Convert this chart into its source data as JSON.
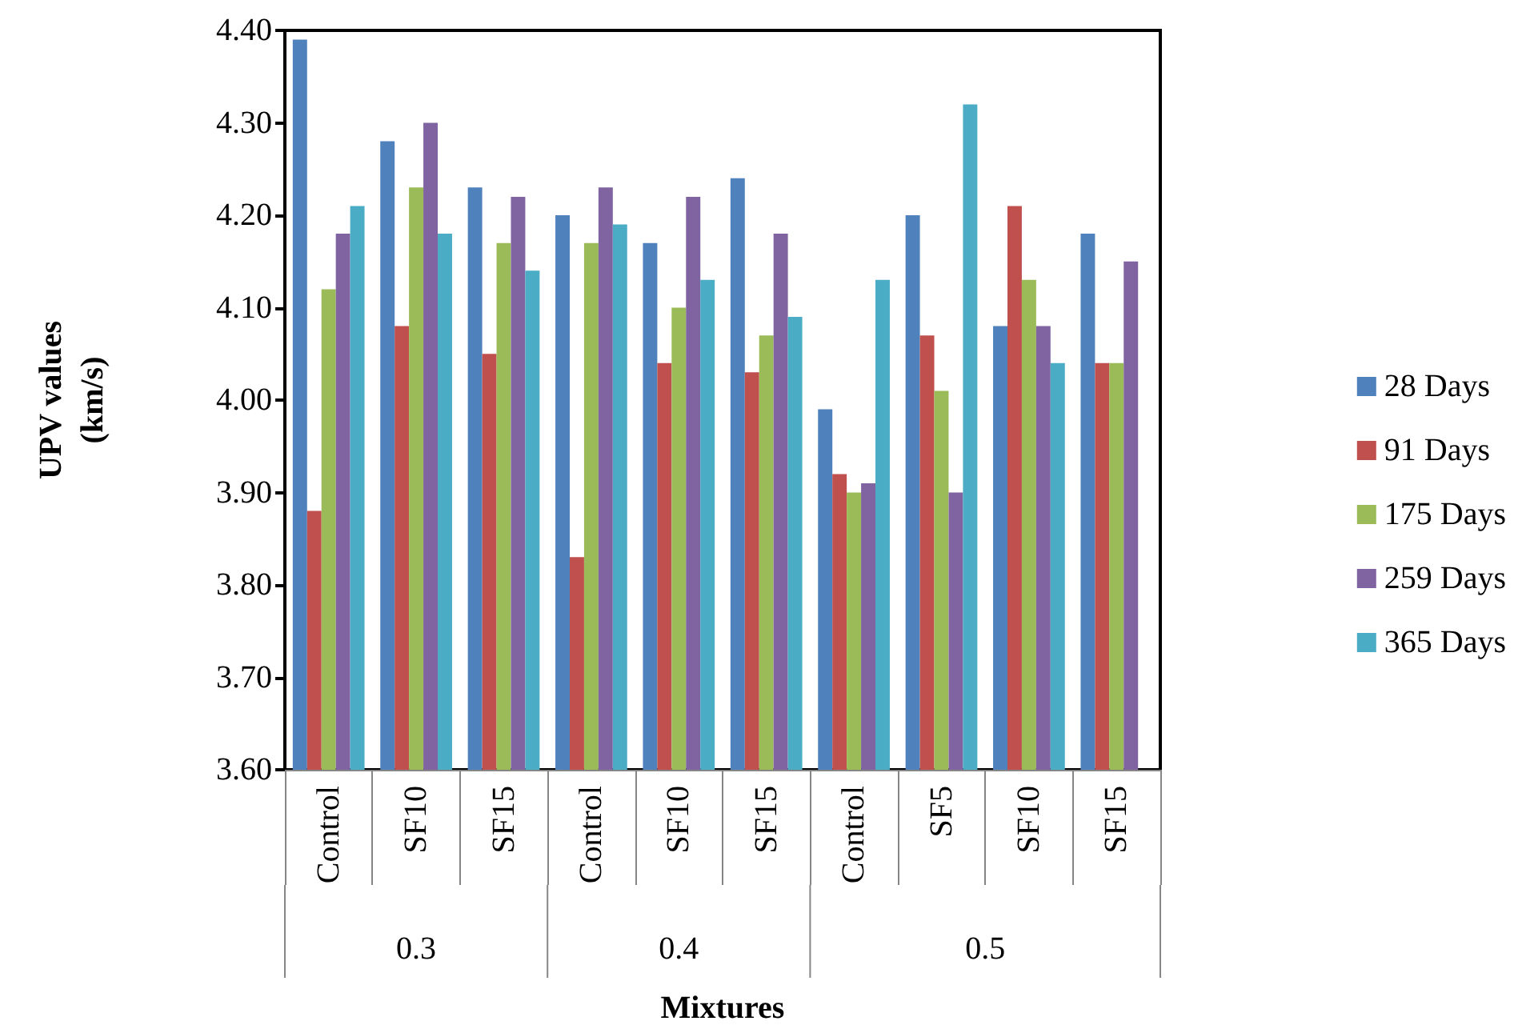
{
  "chart_data": {
    "type": "bar",
    "xlabel": "Mixtures",
    "ylabel": "UPV values\n(km/s)",
    "categories": [
      "Control",
      "SF10",
      "SF15",
      "Control",
      "SF10",
      "SF15",
      "Control",
      "SF5",
      "SF10",
      "SF15"
    ],
    "series": [
      {
        "name": "28 Days",
        "color": "#4f81bd",
        "values": [
          4.39,
          4.28,
          4.23,
          4.2,
          4.17,
          4.24,
          3.99,
          4.2,
          4.08,
          4.18
        ]
      },
      {
        "name": "91 Days",
        "color": "#c0504d",
        "values": [
          3.88,
          4.08,
          4.05,
          3.83,
          4.04,
          4.03,
          3.92,
          4.07,
          4.21,
          4.04
        ]
      },
      {
        "name": "175 Days",
        "color": "#9bbb59",
        "values": [
          4.12,
          4.23,
          4.17,
          4.17,
          4.1,
          4.07,
          3.9,
          4.01,
          4.13,
          4.04
        ]
      },
      {
        "name": "259 Days",
        "color": "#8064a2",
        "values": [
          4.18,
          4.3,
          4.22,
          4.23,
          4.22,
          4.18,
          3.91,
          3.9,
          4.08,
          4.15
        ]
      },
      {
        "name": "365 Days",
        "color": "#4bacc6",
        "values": [
          4.21,
          4.18,
          4.14,
          4.19,
          4.13,
          4.09,
          4.13,
          4.32,
          4.04,
          null
        ]
      }
    ],
    "annotations": [
      "0.3",
      "0.4",
      "0.5"
    ],
    "ylim": [
      3.6,
      4.4
    ],
    "yticks": [
      {
        "value": 3.6,
        "label": "3.60"
      },
      {
        "value": 3.7,
        "label": "3.70"
      },
      {
        "value": 3.8,
        "label": "3.80"
      },
      {
        "value": 3.9,
        "label": "3.90"
      },
      {
        "value": 4.0,
        "label": "4.00"
      },
      {
        "value": 4.1,
        "label": "4.10"
      },
      {
        "value": 4.2,
        "label": "4.20"
      },
      {
        "value": 4.3,
        "label": "4.30"
      },
      {
        "value": 4.4,
        "label": "4.40"
      }
    ],
    "grid": false,
    "legend": "right"
  }
}
